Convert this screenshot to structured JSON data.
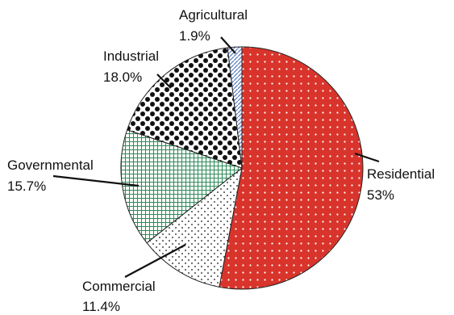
{
  "chart_data": {
    "type": "pie",
    "title": "",
    "slices": [
      {
        "label": "Residential",
        "value_text": "53%",
        "value": 53.0,
        "color": "#d9342b",
        "pattern": "dots-white"
      },
      {
        "label": "Commercial",
        "value_text": "11.4%",
        "value": 11.4,
        "color": "#ffffff",
        "pattern": "dots-black"
      },
      {
        "label": "Governmental",
        "value_text": "15.7%",
        "value": 15.7,
        "color": "#2e8b57",
        "pattern": "grid-green"
      },
      {
        "label": "Industrial",
        "value_text": "18.0%",
        "value": 18.0,
        "color": "#111111",
        "pattern": "checker-black"
      },
      {
        "label": "Agricultural",
        "value_text": "1.9%",
        "value": 1.9,
        "color": "#5a7fc0",
        "pattern": "diagonal-blue"
      }
    ]
  }
}
